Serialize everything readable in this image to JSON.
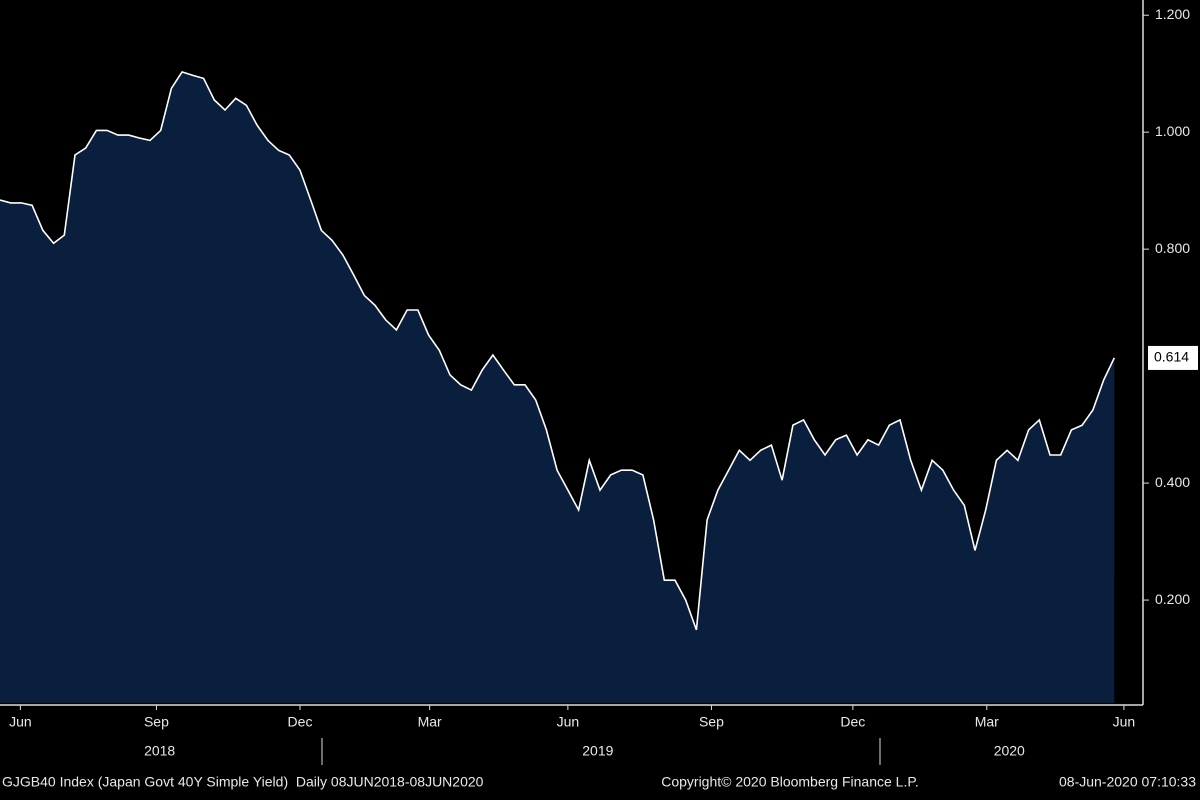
{
  "chart_data": {
    "type": "area",
    "values": [
      0.884,
      0.879,
      0.879,
      0.875,
      0.832,
      0.81,
      0.824,
      0.961,
      0.973,
      1.003,
      1.003,
      0.995,
      0.995,
      0.99,
      0.986,
      1.003,
      1.075,
      1.103,
      1.097,
      1.092,
      1.055,
      1.038,
      1.058,
      1.046,
      1.012,
      0.986,
      0.969,
      0.961,
      0.935,
      0.884,
      0.832,
      0.815,
      0.79,
      0.756,
      0.721,
      0.704,
      0.679,
      0.662,
      0.696,
      0.696,
      0.653,
      0.627,
      0.585,
      0.568,
      0.559,
      0.593,
      0.619,
      0.593,
      0.568,
      0.568,
      0.542,
      0.491,
      0.422,
      0.388,
      0.354,
      0.439,
      0.388,
      0.414,
      0.422,
      0.422,
      0.414,
      0.337,
      0.234,
      0.234,
      0.2,
      0.149,
      0.337,
      0.388,
      0.422,
      0.456,
      0.439,
      0.456,
      0.465,
      0.405,
      0.499,
      0.508,
      0.474,
      0.448,
      0.474,
      0.482,
      0.448,
      0.474,
      0.465,
      0.499,
      0.508,
      0.439,
      0.388,
      0.439,
      0.422,
      0.388,
      0.362,
      0.285,
      0.354,
      0.439,
      0.456,
      0.439,
      0.491,
      0.508,
      0.448,
      0.448,
      0.491,
      0.499,
      0.525,
      0.576,
      0.614
    ],
    "color": "#0a1f3d",
    "line_color": "#ffffff",
    "xlim": [
      0,
      106.4
    ],
    "xticks": [
      {
        "value": 1.9,
        "label": "Jun"
      },
      {
        "value": 14.6,
        "label": "Sep"
      },
      {
        "value": 28,
        "label": "Dec"
      },
      {
        "value": 40.1,
        "label": "Mar"
      },
      {
        "value": 53,
        "label": "Jun"
      },
      {
        "value": 66.4,
        "label": "Sep"
      },
      {
        "value": 79.6,
        "label": "Dec"
      },
      {
        "value": 92.1,
        "label": "Mar"
      },
      {
        "value": 104.9,
        "label": "Jun"
      }
    ],
    "year_ticks": [
      {
        "value": 14.9,
        "label": "2018"
      },
      {
        "value": 55.8,
        "label": "2019"
      },
      {
        "value": 94.2,
        "label": "2020"
      }
    ],
    "ylim": [
      0.024,
      1.226
    ],
    "yticks": [
      {
        "value": 0.2,
        "label": "0.200"
      },
      {
        "value": 0.4,
        "label": "0.400"
      },
      {
        "value": 0.8,
        "label": "0.800"
      },
      {
        "value": 1.0,
        "label": "1.000"
      },
      {
        "value": 1.2,
        "label": "1.200"
      }
    ],
    "footer_left": "GJGB40 Index (Japan Govt 40Y Simple Yield)  Daily 08JUN2018-08JUN2020",
    "footer_center": "Copyright© 2020 Bloomberg Finance L.P.",
    "footer_right": "08-Jun-2020 07:10:33"
  }
}
